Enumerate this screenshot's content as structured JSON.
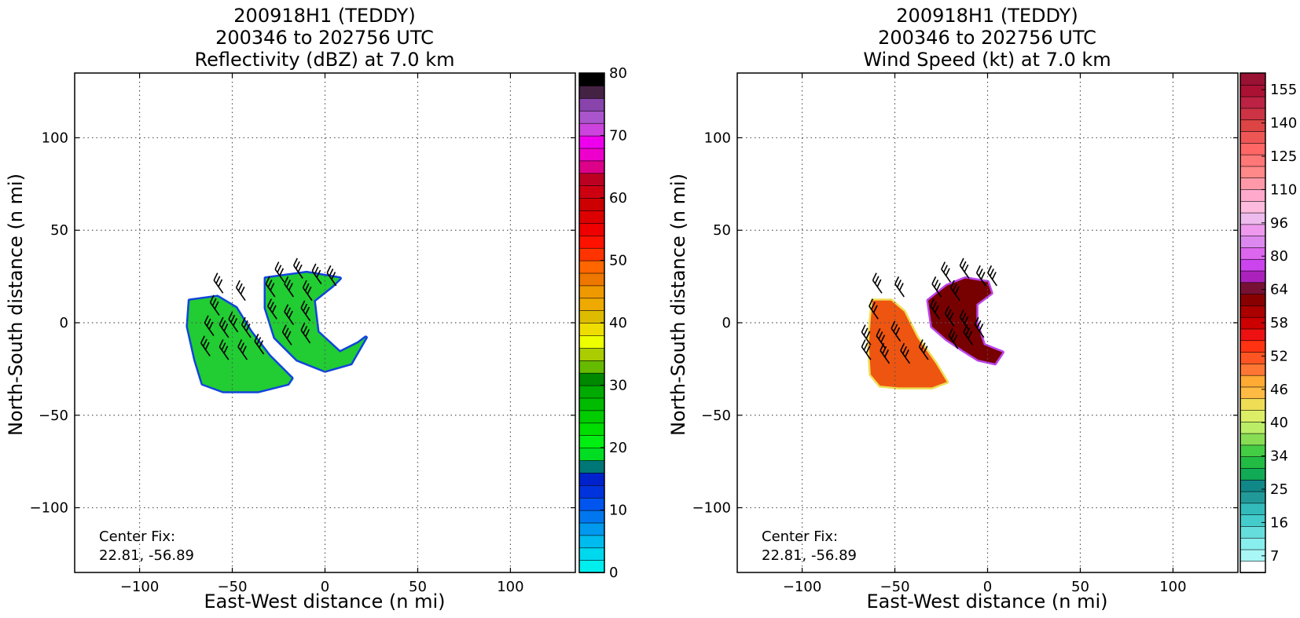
{
  "chart_data": [
    {
      "type": "heatmap",
      "title_lines": [
        "200918H1 (TEDDY)",
        "200346 to 202756 UTC",
        "Reflectivity (dBZ) at 7.0 km"
      ],
      "xlabel": "East-West distance (n mi)",
      "ylabel": "North-South distance (n mi)",
      "xlim": [
        -135,
        135
      ],
      "ylim": [
        -135,
        135
      ],
      "xticks": [
        -100,
        -50,
        0,
        50,
        100
      ],
      "yticks": [
        -100,
        -50,
        0,
        50,
        100
      ],
      "grid": true,
      "annotation_lines": [
        "Center Fix:",
        "22.81, -56.89"
      ],
      "colorbar": {
        "min": 0,
        "max": 80,
        "ticks": [
          "0",
          "10",
          "20",
          "30",
          "40",
          "50",
          "60",
          "70",
          "80"
        ],
        "colors": [
          "#00eeee",
          "#00d8ee",
          "#00bbee",
          "#0099ee",
          "#0077ee",
          "#0055ee",
          "#0033dd",
          "#0022cc",
          "#007777",
          "#00dd22",
          "#00ee11",
          "#00dd00",
          "#00cc00",
          "#00bb00",
          "#00aa00",
          "#008800",
          "#66bb00",
          "#aacc00",
          "#eeff00",
          "#eedd00",
          "#ddbb00",
          "#eeaa00",
          "#ee9900",
          "#ee7700",
          "#ff6600",
          "#ff3300",
          "#ff1100",
          "#ee0000",
          "#dd0000",
          "#cc0000",
          "#cc0011",
          "#bb0022",
          "#dd0088",
          "#ee00cc",
          "#ee00ee",
          "#cc44dd",
          "#aa55cc",
          "#8844aa",
          "#442244",
          "#000000"
        ]
      },
      "echo_regions": [
        {
          "name": "outer-band",
          "color": "#22cc33",
          "edge_color": "#1144dd",
          "points": [
            [
              -73,
              12
            ],
            [
              -58,
              14
            ],
            [
              -48,
              8
            ],
            [
              -40,
              -5
            ],
            [
              -30,
              -18
            ],
            [
              -18,
              -30
            ],
            [
              -20,
              -33
            ],
            [
              -36,
              -37
            ],
            [
              -55,
              -37
            ],
            [
              -66,
              -33
            ],
            [
              -70,
              -20
            ],
            [
              -74,
              -2
            ]
          ]
        },
        {
          "name": "inner-band",
          "color": "#22cc33",
          "edge_color": "#1144dd",
          "points": [
            [
              -32,
              24
            ],
            [
              -10,
              27
            ],
            [
              8,
              24
            ],
            [
              4,
              20
            ],
            [
              -6,
              12
            ],
            [
              -4,
              -5
            ],
            [
              8,
              -16
            ],
            [
              18,
              -11
            ],
            [
              22,
              -8
            ],
            [
              14,
              -22
            ],
            [
              0,
              -26
            ],
            [
              -15,
              -20
            ],
            [
              -27,
              -8
            ],
            [
              -32,
              8
            ]
          ]
        }
      ],
      "wind_barbs": [
        [
          -55,
          16
        ],
        [
          -43,
          12
        ],
        [
          -57,
          4
        ],
        [
          -60,
          -7
        ],
        [
          -52,
          -8
        ],
        [
          -47,
          -5
        ],
        [
          -40,
          -8
        ],
        [
          -62,
          -18
        ],
        [
          -52,
          -20
        ],
        [
          -42,
          -20
        ],
        [
          -33,
          -17
        ],
        [
          -22,
          22
        ],
        [
          -12,
          24
        ],
        [
          -2,
          21
        ],
        [
          6,
          20
        ],
        [
          -27,
          14
        ],
        [
          -17,
          14
        ],
        [
          -7,
          12
        ],
        [
          -26,
          2
        ],
        [
          -17,
          -1
        ],
        [
          -8,
          1
        ],
        [
          -18,
          -12
        ],
        [
          -8,
          -11
        ]
      ]
    },
    {
      "type": "heatmap",
      "title_lines": [
        "200918H1 (TEDDY)",
        "200346 to 202756 UTC",
        "Wind Speed (kt) at 7.0 km"
      ],
      "xlabel": "East-West distance (n mi)",
      "ylabel": "North-South distance (n mi)",
      "xlim": [
        -135,
        135
      ],
      "ylim": [
        -135,
        135
      ],
      "xticks": [
        -100,
        -50,
        0,
        50,
        100
      ],
      "yticks": [
        -100,
        -50,
        0,
        50,
        100
      ],
      "grid": true,
      "annotation_lines": [
        "Center Fix:",
        "22.81, -56.89"
      ],
      "colorbar": {
        "min": 7,
        "max": 160,
        "ticks": [
          "7",
          "16",
          "25",
          "34",
          "40",
          "46",
          "52",
          "58",
          "64",
          "80",
          "96",
          "110",
          "125",
          "140",
          "155"
        ],
        "colors": [
          "#ffffff",
          "#aaf7f7",
          "#88eeee",
          "#66dddd",
          "#44cccc",
          "#33bbbb",
          "#229999",
          "#118888",
          "#11aa55",
          "#22bb44",
          "#44cc44",
          "#88dd55",
          "#bbee66",
          "#ddee66",
          "#eedd55",
          "#ffbb44",
          "#ffaa33",
          "#ff7733",
          "#ff5522",
          "#ff3311",
          "#ee1111",
          "#cc0000",
          "#aa0000",
          "#880000",
          "#771133",
          "#aa22bb",
          "#cc44ee",
          "#dd66ee",
          "#dd88ee",
          "#ee99ee",
          "#eebbee",
          "#ffbbdd",
          "#ffaacc",
          "#ff99aa",
          "#ff8888",
          "#ff7777",
          "#ff6666",
          "#ee5555",
          "#dd4444",
          "#cc3344",
          "#bb2244",
          "#aa1133",
          "#991133"
        ]
      },
      "speed_regions": [
        {
          "name": "outer-band",
          "color": "#ee5511",
          "edge_color": "#eedd55",
          "points": [
            [
              -62,
              12
            ],
            [
              -52,
              12
            ],
            [
              -45,
              6
            ],
            [
              -38,
              -8
            ],
            [
              -28,
              -22
            ],
            [
              -22,
              -32
            ],
            [
              -30,
              -35
            ],
            [
              -48,
              -35
            ],
            [
              -58,
              -34
            ],
            [
              -63,
              -28
            ],
            [
              -64,
              -12
            ],
            [
              -63,
              2
            ]
          ]
        },
        {
          "name": "inner-band",
          "color": "#770000",
          "edge_color": "#bb44ee",
          "points": [
            [
              -32,
              12
            ],
            [
              -22,
              20
            ],
            [
              -12,
              24
            ],
            [
              0,
              22
            ],
            [
              2,
              16
            ],
            [
              -6,
              10
            ],
            [
              -6,
              0
            ],
            [
              -2,
              -12
            ],
            [
              8,
              -16
            ],
            [
              4,
              -22
            ],
            [
              -5,
              -20
            ],
            [
              -13,
              -15
            ],
            [
              -22,
              -9
            ],
            [
              -30,
              -2
            ]
          ]
        }
      ],
      "wind_barbs": [
        [
          -57,
          16
        ],
        [
          -45,
          14
        ],
        [
          -59,
          2
        ],
        [
          -63,
          -12
        ],
        [
          -55,
          -14
        ],
        [
          -47,
          -10
        ],
        [
          -63,
          -20
        ],
        [
          -53,
          -22
        ],
        [
          -42,
          -22
        ],
        [
          -32,
          -20
        ],
        [
          -20,
          22
        ],
        [
          -10,
          24
        ],
        [
          -1,
          20
        ],
        [
          5,
          20
        ],
        [
          -25,
          14
        ],
        [
          -15,
          12
        ],
        [
          -26,
          2
        ],
        [
          -18,
          -2
        ],
        [
          -10,
          -4
        ],
        [
          -16,
          -14
        ],
        [
          -8,
          -12
        ],
        [
          -2,
          -8
        ]
      ]
    }
  ]
}
